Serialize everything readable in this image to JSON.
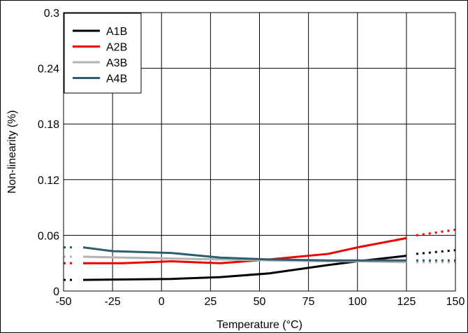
{
  "chart_data": {
    "type": "line",
    "xlabel": "Temperature (°C)",
    "ylabel": "Non-linearity (%)",
    "xlim": [
      -50,
      150
    ],
    "ylim": [
      0,
      0.3
    ],
    "xticks": [
      "-50",
      "-25",
      "0",
      "25",
      "50",
      "75",
      "100",
      "125",
      "150"
    ],
    "yticks": [
      "0",
      "0.06",
      "0.12",
      "0.18",
      "0.24",
      "0.3"
    ],
    "grid": true,
    "legend_position": "top-left",
    "series": [
      {
        "name": "A1B",
        "color": "#000000",
        "solid": [
          [
            -40,
            0.012
          ],
          [
            5,
            0.013
          ],
          [
            30,
            0.015
          ],
          [
            55,
            0.019
          ],
          [
            85,
            0.028
          ],
          [
            100,
            0.032
          ],
          [
            125,
            0.038
          ]
        ],
        "dotted": [
          [
            -50,
            0.012
          ],
          [
            -45,
            0.012
          ],
          [
            130,
            0.04
          ],
          [
            150,
            0.044
          ]
        ]
      },
      {
        "name": "A2B",
        "color": "#ee0000",
        "solid": [
          [
            -40,
            0.03
          ],
          [
            -20,
            0.03
          ],
          [
            5,
            0.032
          ],
          [
            30,
            0.03
          ],
          [
            55,
            0.034
          ],
          [
            85,
            0.04
          ],
          [
            100,
            0.047
          ],
          [
            125,
            0.057
          ]
        ],
        "dotted": [
          [
            -50,
            0.03
          ],
          [
            -45,
            0.03
          ],
          [
            130,
            0.06
          ],
          [
            150,
            0.066
          ]
        ]
      },
      {
        "name": "A3B",
        "color": "#b3b3b3",
        "solid": [
          [
            -40,
            0.037
          ],
          [
            5,
            0.035
          ],
          [
            30,
            0.034
          ],
          [
            55,
            0.033
          ],
          [
            85,
            0.032
          ],
          [
            100,
            0.032
          ],
          [
            125,
            0.031
          ]
        ],
        "dotted": [
          [
            -50,
            0.037
          ],
          [
            -45,
            0.037
          ],
          [
            130,
            0.031
          ],
          [
            150,
            0.031
          ]
        ]
      },
      {
        "name": "A4B",
        "color": "#2e5c73",
        "solid": [
          [
            -40,
            0.047
          ],
          [
            -25,
            0.043
          ],
          [
            5,
            0.041
          ],
          [
            30,
            0.036
          ],
          [
            55,
            0.034
          ],
          [
            85,
            0.033
          ],
          [
            100,
            0.033
          ],
          [
            125,
            0.033
          ]
        ],
        "dotted": [
          [
            -50,
            0.047
          ],
          [
            -45,
            0.047
          ],
          [
            130,
            0.033
          ],
          [
            150,
            0.033
          ]
        ]
      }
    ]
  }
}
